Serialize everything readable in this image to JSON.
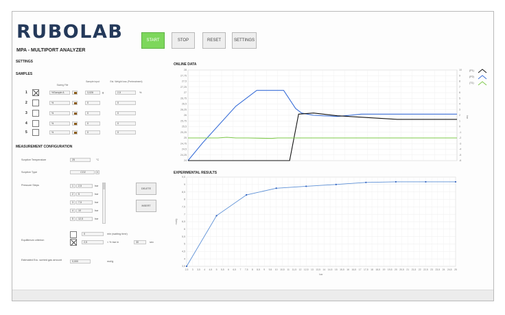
{
  "app": {
    "logo": "RUBOLAB",
    "subtitle": "MPA - MULTIPORT ANALYZER"
  },
  "toolbar": {
    "start": "START",
    "stop": "STOP",
    "reset": "RESET",
    "settings": "SETTINGS"
  },
  "sections": {
    "settings": "SETTINGS",
    "samples": "SAMPLES",
    "measurement": "MEASUREMENT CONFIGURATION",
    "online": "ONLINE DATA",
    "experimental": "EXPERIMENTAL RESULTS"
  },
  "samples": {
    "headers": {
      "file": "Saving File",
      "input": "Sample input",
      "ref": "Est. Weight loss (Pretreatment)"
    },
    "unit_g": "g",
    "unit_pct": "%",
    "rows": [
      {
        "num": "1",
        "checked": true,
        "file": "%Sample A",
        "input": "3,026",
        "ref": "2,5"
      },
      {
        "num": "2",
        "checked": false,
        "file": "%",
        "input": "0",
        "ref": "0"
      },
      {
        "num": "3",
        "checked": false,
        "file": "%",
        "input": "0",
        "ref": "0"
      },
      {
        "num": "4",
        "checked": false,
        "file": "%",
        "input": "0",
        "ref": "0"
      },
      {
        "num": "5",
        "checked": false,
        "file": "%",
        "input": "0",
        "ref": "0"
      }
    ]
  },
  "measurement": {
    "sorptive_temp_label": "Sorptive Temperature",
    "sorptive_temp_value": "25",
    "sorptive_temp_unit": "°C",
    "sorptive_type_label": "Sorptive Type",
    "sorptive_type_value": "CO2",
    "pressure_steps_label": "Pressure Steps",
    "pressure_steps": [
      {
        "idx": "1",
        "value": "2,5",
        "unit": "bar"
      },
      {
        "idx": "2",
        "value": "5",
        "unit": "bar"
      },
      {
        "idx": "3",
        "value": "7,5",
        "unit": "bar"
      },
      {
        "idx": "4",
        "value": "10",
        "unit": "bar"
      },
      {
        "idx": "5",
        "value": "12,5",
        "unit": "bar"
      }
    ],
    "delete_label": "DELETE",
    "insert_label": "INSERT",
    "equilibrium_label": "Equilibrium criterion",
    "eq_row1_value": "0",
    "eq_row1_unit": "min (waiting time)",
    "eq_row2_value": "2,5",
    "eq_row2_unit": "< % bar in",
    "eq_row2_value2": "30",
    "eq_row2_unit2": "sec",
    "estimated_label": "Estimated Exc. sorbed gas amount",
    "estimated_value": "0,000",
    "estimated_unit": "mol/g"
  },
  "online_legend": [
    "(P1)",
    "(P2)",
    "(T1)"
  ],
  "colors": {
    "start_green": "#7dd75c",
    "series_blue": "#3a6fd8",
    "series_black": "#111111",
    "series_green": "#7ec84a",
    "exp_line": "#5b8fd6",
    "logo": "#24395a"
  },
  "chart_data": [
    {
      "type": "line",
      "title": "ONLINE DATA",
      "left_ticks": [
        "28",
        "27,75",
        "27,5",
        "27,25",
        "27",
        "26,75",
        "26,5",
        "26,25",
        "26",
        "25,75",
        "25,5",
        "25,25",
        "25",
        "24,75",
        "24,5",
        "24,25",
        "24"
      ],
      "right_ticks": [
        "10",
        "9",
        "8",
        "7",
        "6",
        "5",
        "4",
        "3",
        "2",
        "1",
        "0",
        "-1",
        "-2",
        "-3",
        "-4",
        "-5",
        "-6"
      ],
      "right_label": "bar",
      "ylim_left": [
        24,
        28
      ],
      "ylim_right": [
        -6,
        10
      ],
      "series": [
        {
          "name": "(P1)",
          "color": "#3a6fd8",
          "x": [
            0,
            50,
            160,
            230,
            320,
            360,
            380,
            420,
            500,
            580,
            680,
            820,
            900
          ],
          "y": [
            24,
            24.8,
            26.4,
            27.1,
            27.1,
            26.3,
            26.1,
            26.0,
            25.95,
            26.05,
            26.05,
            26.05,
            26.05
          ]
        },
        {
          "name": "(P2)",
          "color": "#111111",
          "x": [
            0,
            150,
            300,
            340,
            370,
            420,
            500,
            600,
            700,
            800,
            900
          ],
          "y": [
            24,
            24,
            24,
            24.0,
            26.05,
            26.1,
            25.98,
            25.9,
            25.82,
            25.82,
            25.82
          ]
        },
        {
          "name": "(T1)",
          "color": "#7ec84a",
          "x": [
            0,
            100,
            130,
            160,
            200,
            280,
            300,
            340,
            500,
            900
          ],
          "y": [
            25.0,
            25.0,
            25.03,
            25.0,
            25.0,
            24.98,
            25.0,
            25.0,
            25.0,
            25.0
          ]
        }
      ]
    },
    {
      "type": "line",
      "title": "EXPERIMENTAL RESULTS",
      "xlabel": "bar",
      "ylabel": "mol/g",
      "x_ticks": [
        "2,5",
        "3",
        "3,5",
        "4",
        "4,5",
        "5",
        "5,5",
        "6",
        "6,5",
        "7",
        "7,5",
        "8",
        "8,5",
        "9",
        "9,5",
        "10",
        "10,5",
        "11",
        "11,5",
        "12",
        "12,5",
        "13",
        "13,5",
        "14",
        "14,5",
        "15",
        "15,5",
        "16",
        "16,5",
        "17",
        "17,5",
        "18",
        "18,5",
        "19",
        "19,5",
        "20",
        "20,5",
        "21",
        "21,5",
        "22",
        "22,5",
        "23",
        "23,5",
        "24",
        "24,5",
        "25"
      ],
      "y_ticks": [
        "9,5",
        "9",
        "8,5",
        "8",
        "7,5",
        "7",
        "6,5",
        "6",
        "5,5",
        "5",
        "4,5",
        "4",
        "3,5"
      ],
      "xlim": [
        2.5,
        25
      ],
      "ylim": [
        3.5,
        9.5
      ],
      "x": [
        2.5,
        5,
        7.5,
        10,
        12.5,
        15,
        17.5,
        20,
        22.5,
        25
      ],
      "y": [
        3.5,
        6.9,
        8.3,
        8.75,
        8.88,
        9.0,
        9.14,
        9.18,
        9.18,
        9.18
      ]
    }
  ]
}
